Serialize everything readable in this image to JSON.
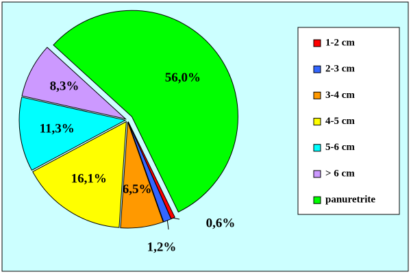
{
  "chart_data": {
    "type": "pie",
    "categories": [
      "1-2 cm",
      "2-3 cm",
      "3-4 cm",
      "4-5 cm",
      "5-6 cm",
      "> 6 cm",
      "panuretrite"
    ],
    "values": [
      0.6,
      1.2,
      6.5,
      16.1,
      11.3,
      8.3,
      56.0
    ],
    "value_labels": [
      "0,6%",
      "1,2%",
      "6,5%",
      "16,1%",
      "11,3%",
      "8,3%",
      "56,0%"
    ],
    "colors": [
      "#ff0000",
      "#3366ff",
      "#ff9900",
      "#ffff00",
      "#00ffff",
      "#cc99ff",
      "#00ff00"
    ],
    "legend": "right"
  }
}
